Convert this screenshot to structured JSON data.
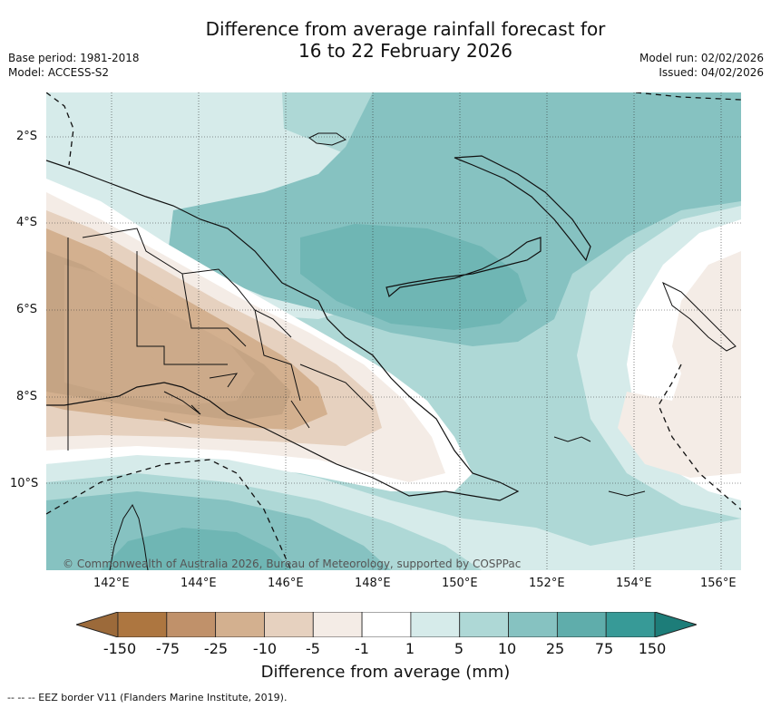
{
  "title": {
    "line1": "Difference from average rainfall forecast for",
    "line2": "16 to 22 February 2026"
  },
  "meta": {
    "base_period": "Base period: 1981-2018",
    "model": "Model: ACCESS-S2",
    "model_run": "Model run: 02/02/2026",
    "issued": "Issued: 04/02/2026"
  },
  "map": {
    "lat_labels": [
      "2°S",
      "4°S",
      "6°S",
      "8°S",
      "10°S"
    ],
    "lon_labels": [
      "142°E",
      "144°E",
      "146°E",
      "148°E",
      "150°E",
      "152°E",
      "154°E",
      "156°E"
    ],
    "copyright": "© Commonwealth of Australia 2026, Bureau of Meteorology, supported by COSPPac"
  },
  "colorbar": {
    "title": "Difference from average (mm)",
    "labels": [
      "-150",
      "-75",
      "-25",
      "-10",
      "-5",
      "-1",
      "1",
      "5",
      "10",
      "25",
      "75",
      "150"
    ],
    "colors": [
      "#9c6a3a",
      "#ad7640",
      "#c0916a",
      "#d3b08f",
      "#e6d1bf",
      "#f4ece6",
      "#ffffff",
      "#d6ebea",
      "#aed8d6",
      "#86c2c1",
      "#5fadab",
      "#379a97",
      "#1d7d79"
    ]
  },
  "legend": {
    "eez": "-- -- -- EEZ border V11 (Flanders Marine Institute, 2019)."
  }
}
